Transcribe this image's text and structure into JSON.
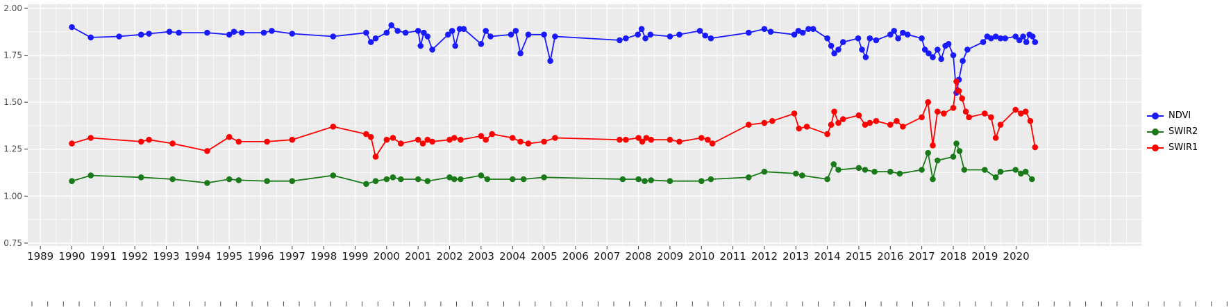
{
  "chart_data": {
    "type": "line",
    "title": "",
    "xlabel": "",
    "ylabel": "",
    "panel_bg": "#EBEBEB",
    "grid_color": "#FFFFFF",
    "axis_text_color": "#4D4D4D",
    "x_axis": {
      "range": [
        1988.6,
        2024.0
      ],
      "tick_years": [
        1989,
        1990,
        1991,
        1992,
        1993,
        1994,
        1995,
        1996,
        1997,
        1998,
        1999,
        2000,
        2001,
        2002,
        2003,
        2004,
        2005,
        2006,
        2007,
        2008,
        2009,
        2010,
        2011,
        2012,
        2013,
        2014,
        2015,
        2016,
        2017,
        2018,
        2019,
        2020
      ],
      "tick_labels": [
        "1989",
        "1990",
        "1991",
        "1992",
        "1993",
        "1994",
        "1995",
        "1996",
        "1997",
        "1998",
        "1999",
        "2000",
        "2001",
        "2002",
        "2003",
        "2004",
        "2005",
        "2006",
        "2007",
        "2008",
        "2009",
        "2010",
        "2011",
        "2012",
        "2013",
        "2014",
        "2015",
        "2016",
        "2017",
        "2018",
        "2019",
        "2020"
      ]
    },
    "y_axis": {
      "range": [
        0.735,
        2.022
      ],
      "ticks": [
        0.75,
        1.0,
        1.25,
        1.5,
        1.75,
        2.0
      ],
      "tick_labels": [
        "0.75",
        "1.00",
        "1.25",
        "1.50",
        "1.75",
        "2.00"
      ]
    },
    "legend": {
      "position": "right",
      "items": [
        {
          "label": "NDVI",
          "color": "#1A1AFF"
        },
        {
          "label": "SWIR2",
          "color": "#1A7A1A"
        },
        {
          "label": "SWIR1",
          "color": "#FF0000"
        }
      ]
    },
    "series": [
      {
        "name": "NDVI",
        "color": "#1A1AFF",
        "points": [
          [
            1990.0,
            1.9
          ],
          [
            1990.6,
            1.845
          ],
          [
            1991.5,
            1.85
          ],
          [
            1992.2,
            1.86
          ],
          [
            1992.45,
            1.865
          ],
          [
            1993.1,
            1.875
          ],
          [
            1993.4,
            1.87
          ],
          [
            1994.3,
            1.87
          ],
          [
            1995.0,
            1.86
          ],
          [
            1995.15,
            1.875
          ],
          [
            1995.4,
            1.87
          ],
          [
            1996.1,
            1.87
          ],
          [
            1996.35,
            1.88
          ],
          [
            1997.0,
            1.865
          ],
          [
            1998.3,
            1.85
          ],
          [
            1999.35,
            1.87
          ],
          [
            1999.5,
            1.82
          ],
          [
            1999.65,
            1.84
          ],
          [
            2000.0,
            1.87
          ],
          [
            2000.15,
            1.91
          ],
          [
            2000.35,
            1.88
          ],
          [
            2000.6,
            1.87
          ],
          [
            2001.0,
            1.88
          ],
          [
            2001.08,
            1.8
          ],
          [
            2001.18,
            1.87
          ],
          [
            2001.3,
            1.85
          ],
          [
            2001.45,
            1.78
          ],
          [
            2001.95,
            1.86
          ],
          [
            2002.08,
            1.88
          ],
          [
            2002.18,
            1.8
          ],
          [
            2002.32,
            1.89
          ],
          [
            2002.45,
            1.89
          ],
          [
            2003.0,
            1.81
          ],
          [
            2003.15,
            1.88
          ],
          [
            2003.3,
            1.85
          ],
          [
            2003.95,
            1.86
          ],
          [
            2004.1,
            1.88
          ],
          [
            2004.25,
            1.76
          ],
          [
            2004.5,
            1.86
          ],
          [
            2005.0,
            1.86
          ],
          [
            2005.2,
            1.72
          ],
          [
            2005.35,
            1.85
          ],
          [
            2007.4,
            1.83
          ],
          [
            2007.6,
            1.84
          ],
          [
            2007.98,
            1.86
          ],
          [
            2008.1,
            1.89
          ],
          [
            2008.22,
            1.84
          ],
          [
            2008.38,
            1.86
          ],
          [
            2009.0,
            1.85
          ],
          [
            2009.3,
            1.86
          ],
          [
            2009.95,
            1.88
          ],
          [
            2010.12,
            1.855
          ],
          [
            2010.3,
            1.84
          ],
          [
            2011.5,
            1.87
          ],
          [
            2012.0,
            1.89
          ],
          [
            2012.2,
            1.875
          ],
          [
            2012.95,
            1.86
          ],
          [
            2013.08,
            1.88
          ],
          [
            2013.22,
            1.87
          ],
          [
            2013.4,
            1.89
          ],
          [
            2013.55,
            1.89
          ],
          [
            2014.0,
            1.84
          ],
          [
            2014.12,
            1.8
          ],
          [
            2014.22,
            1.76
          ],
          [
            2014.35,
            1.78
          ],
          [
            2014.5,
            1.82
          ],
          [
            2014.98,
            1.84
          ],
          [
            2015.1,
            1.78
          ],
          [
            2015.22,
            1.74
          ],
          [
            2015.35,
            1.84
          ],
          [
            2015.55,
            1.83
          ],
          [
            2016.0,
            1.86
          ],
          [
            2016.12,
            1.88
          ],
          [
            2016.25,
            1.84
          ],
          [
            2016.4,
            1.87
          ],
          [
            2016.55,
            1.86
          ],
          [
            2017.0,
            1.84
          ],
          [
            2017.1,
            1.78
          ],
          [
            2017.22,
            1.76
          ],
          [
            2017.35,
            1.74
          ],
          [
            2017.5,
            1.78
          ],
          [
            2017.62,
            1.73
          ],
          [
            2017.75,
            1.8
          ],
          [
            2017.85,
            1.81
          ],
          [
            2018.0,
            1.75
          ],
          [
            2018.1,
            1.55
          ],
          [
            2018.18,
            1.62
          ],
          [
            2018.3,
            1.72
          ],
          [
            2018.45,
            1.78
          ],
          [
            2018.95,
            1.82
          ],
          [
            2019.08,
            1.85
          ],
          [
            2019.2,
            1.84
          ],
          [
            2019.35,
            1.85
          ],
          [
            2019.5,
            1.84
          ],
          [
            2019.65,
            1.84
          ],
          [
            2019.98,
            1.85
          ],
          [
            2020.1,
            1.83
          ],
          [
            2020.22,
            1.85
          ],
          [
            2020.32,
            1.82
          ],
          [
            2020.42,
            1.86
          ],
          [
            2020.52,
            1.85
          ],
          [
            2020.6,
            1.82
          ]
        ]
      },
      {
        "name": "SWIR2",
        "color": "#1A7A1A",
        "points": [
          [
            1990.0,
            1.08
          ],
          [
            1990.6,
            1.11
          ],
          [
            1992.2,
            1.1
          ],
          [
            1993.2,
            1.09
          ],
          [
            1994.3,
            1.07
          ],
          [
            1995.0,
            1.09
          ],
          [
            1995.3,
            1.085
          ],
          [
            1996.2,
            1.08
          ],
          [
            1997.0,
            1.08
          ],
          [
            1998.3,
            1.11
          ],
          [
            1999.35,
            1.065
          ],
          [
            1999.65,
            1.08
          ],
          [
            2000.0,
            1.09
          ],
          [
            2000.2,
            1.1
          ],
          [
            2000.45,
            1.09
          ],
          [
            2001.0,
            1.09
          ],
          [
            2001.3,
            1.08
          ],
          [
            2002.0,
            1.1
          ],
          [
            2002.15,
            1.09
          ],
          [
            2002.35,
            1.09
          ],
          [
            2003.0,
            1.11
          ],
          [
            2003.2,
            1.09
          ],
          [
            2004.0,
            1.09
          ],
          [
            2004.35,
            1.09
          ],
          [
            2005.0,
            1.1
          ],
          [
            2007.5,
            1.09
          ],
          [
            2008.0,
            1.09
          ],
          [
            2008.2,
            1.08
          ],
          [
            2008.4,
            1.085
          ],
          [
            2009.0,
            1.08
          ],
          [
            2010.0,
            1.08
          ],
          [
            2010.3,
            1.09
          ],
          [
            2011.5,
            1.1
          ],
          [
            2012.0,
            1.13
          ],
          [
            2013.0,
            1.12
          ],
          [
            2013.2,
            1.11
          ],
          [
            2014.0,
            1.09
          ],
          [
            2014.2,
            1.17
          ],
          [
            2014.35,
            1.14
          ],
          [
            2015.0,
            1.15
          ],
          [
            2015.2,
            1.14
          ],
          [
            2015.5,
            1.13
          ],
          [
            2016.0,
            1.13
          ],
          [
            2016.3,
            1.12
          ],
          [
            2017.0,
            1.14
          ],
          [
            2017.2,
            1.23
          ],
          [
            2017.35,
            1.09
          ],
          [
            2017.5,
            1.19
          ],
          [
            2018.0,
            1.21
          ],
          [
            2018.1,
            1.28
          ],
          [
            2018.2,
            1.24
          ],
          [
            2018.35,
            1.14
          ],
          [
            2019.0,
            1.14
          ],
          [
            2019.35,
            1.1
          ],
          [
            2019.5,
            1.13
          ],
          [
            2019.98,
            1.14
          ],
          [
            2020.15,
            1.12
          ],
          [
            2020.3,
            1.13
          ],
          [
            2020.5,
            1.09
          ]
        ]
      },
      {
        "name": "SWIR1",
        "color": "#FF0000",
        "points": [
          [
            1990.0,
            1.28
          ],
          [
            1990.6,
            1.31
          ],
          [
            1992.2,
            1.29
          ],
          [
            1992.45,
            1.3
          ],
          [
            1993.2,
            1.28
          ],
          [
            1994.3,
            1.24
          ],
          [
            1995.0,
            1.315
          ],
          [
            1995.3,
            1.29
          ],
          [
            1996.2,
            1.29
          ],
          [
            1997.0,
            1.3
          ],
          [
            1998.3,
            1.37
          ],
          [
            1999.35,
            1.33
          ],
          [
            1999.5,
            1.315
          ],
          [
            1999.65,
            1.21
          ],
          [
            2000.0,
            1.3
          ],
          [
            2000.2,
            1.31
          ],
          [
            2000.45,
            1.28
          ],
          [
            2001.0,
            1.3
          ],
          [
            2001.15,
            1.28
          ],
          [
            2001.3,
            1.3
          ],
          [
            2001.45,
            1.29
          ],
          [
            2002.0,
            1.3
          ],
          [
            2002.15,
            1.31
          ],
          [
            2002.35,
            1.3
          ],
          [
            2003.0,
            1.32
          ],
          [
            2003.15,
            1.3
          ],
          [
            2003.35,
            1.33
          ],
          [
            2004.0,
            1.31
          ],
          [
            2004.25,
            1.29
          ],
          [
            2004.5,
            1.28
          ],
          [
            2005.0,
            1.29
          ],
          [
            2005.35,
            1.31
          ],
          [
            2007.4,
            1.3
          ],
          [
            2007.6,
            1.3
          ],
          [
            2008.0,
            1.31
          ],
          [
            2008.12,
            1.29
          ],
          [
            2008.25,
            1.31
          ],
          [
            2008.4,
            1.3
          ],
          [
            2009.0,
            1.3
          ],
          [
            2009.3,
            1.29
          ],
          [
            2010.0,
            1.31
          ],
          [
            2010.2,
            1.3
          ],
          [
            2010.35,
            1.28
          ],
          [
            2011.5,
            1.38
          ],
          [
            2012.0,
            1.39
          ],
          [
            2012.25,
            1.4
          ],
          [
            2012.95,
            1.44
          ],
          [
            2013.1,
            1.36
          ],
          [
            2013.35,
            1.37
          ],
          [
            2014.0,
            1.33
          ],
          [
            2014.12,
            1.38
          ],
          [
            2014.22,
            1.45
          ],
          [
            2014.35,
            1.39
          ],
          [
            2014.5,
            1.41
          ],
          [
            2015.0,
            1.43
          ],
          [
            2015.2,
            1.38
          ],
          [
            2015.35,
            1.39
          ],
          [
            2015.55,
            1.4
          ],
          [
            2016.0,
            1.38
          ],
          [
            2016.2,
            1.4
          ],
          [
            2016.4,
            1.37
          ],
          [
            2017.0,
            1.42
          ],
          [
            2017.2,
            1.5
          ],
          [
            2017.35,
            1.27
          ],
          [
            2017.5,
            1.45
          ],
          [
            2017.7,
            1.44
          ],
          [
            2018.0,
            1.47
          ],
          [
            2018.1,
            1.61
          ],
          [
            2018.18,
            1.56
          ],
          [
            2018.28,
            1.52
          ],
          [
            2018.4,
            1.45
          ],
          [
            2018.5,
            1.42
          ],
          [
            2019.0,
            1.44
          ],
          [
            2019.2,
            1.42
          ],
          [
            2019.35,
            1.31
          ],
          [
            2019.5,
            1.38
          ],
          [
            2019.98,
            1.46
          ],
          [
            2020.15,
            1.44
          ],
          [
            2020.3,
            1.45
          ],
          [
            2020.45,
            1.4
          ],
          [
            2020.6,
            1.26
          ]
        ]
      }
    ]
  }
}
